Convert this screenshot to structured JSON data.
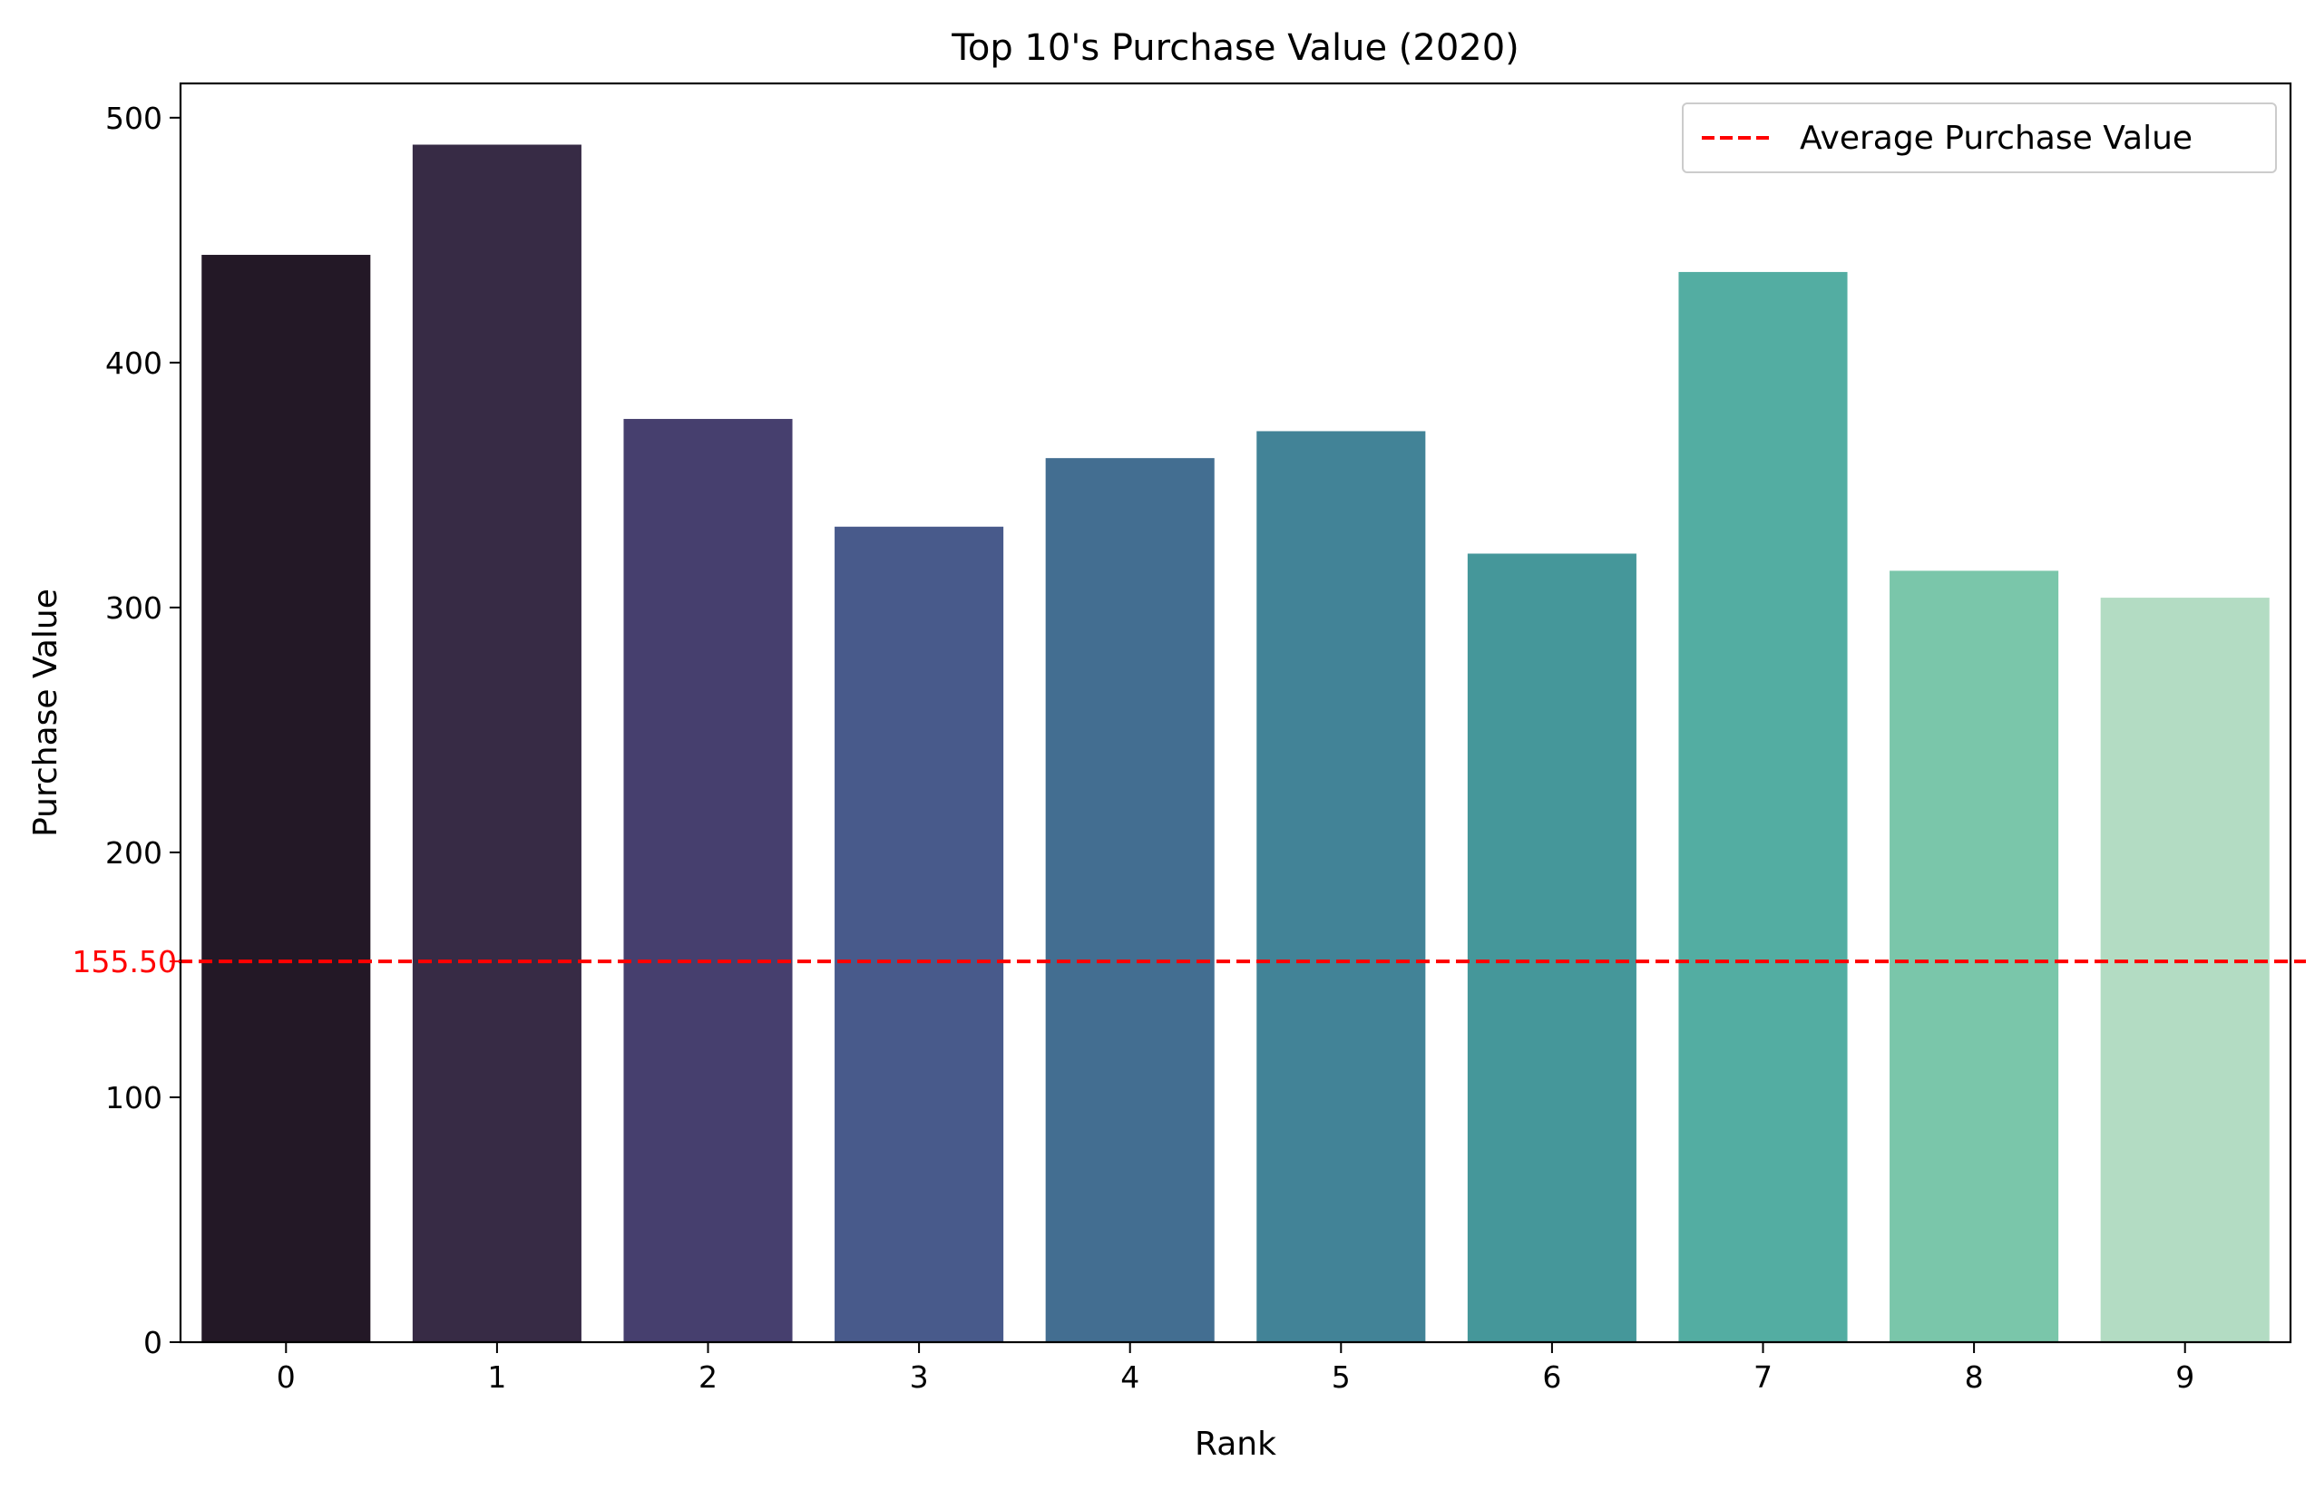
{
  "chart_data": {
    "type": "bar",
    "title": "Top 10's Purchase Value (2020)",
    "xlabel": "Rank",
    "ylabel": "Purchase Value",
    "categories": [
      "0",
      "1",
      "2",
      "3",
      "4",
      "5",
      "6",
      "7",
      "8",
      "9"
    ],
    "values": [
      444,
      489,
      377,
      333,
      361,
      372,
      322,
      437,
      315,
      304
    ],
    "ylim": [
      0,
      514
    ],
    "yticks": [
      0,
      100,
      200,
      300,
      400,
      500
    ],
    "bar_colors": [
      "#231826",
      "#372B45",
      "#463F6E",
      "#485A8B",
      "#436E91",
      "#428397",
      "#45979A",
      "#53ADA2",
      "#7AC6AA",
      "#B3DCC3"
    ],
    "reference_line": {
      "value": 155.5,
      "label": "155.50",
      "legend": "Average Purchase Value",
      "color": "#ff0000",
      "style": "dashed"
    },
    "legend_position": "upper right",
    "grid": false
  }
}
